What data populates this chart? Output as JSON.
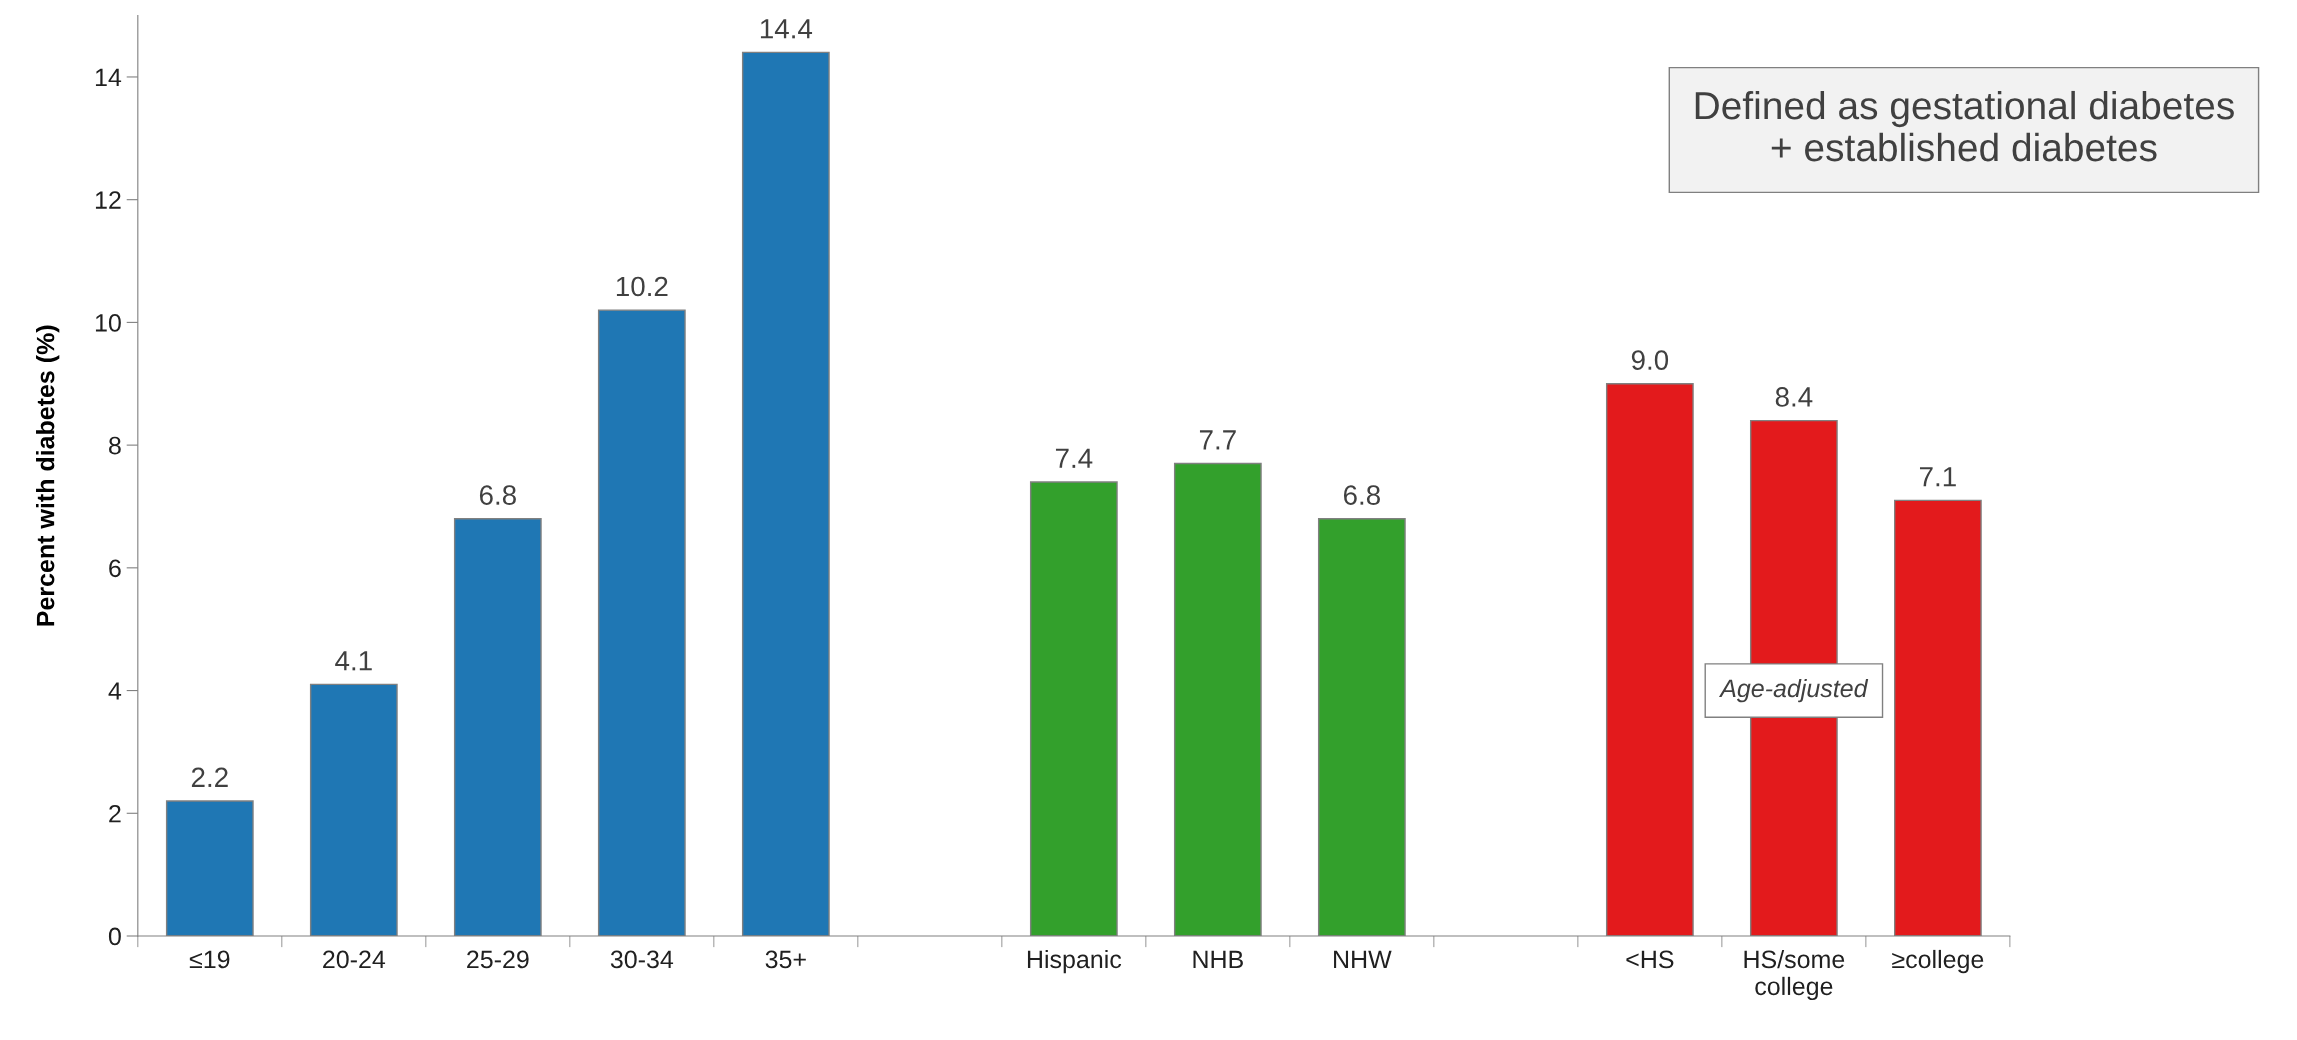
{
  "chart_data": {
    "type": "bar",
    "ylabel": "Percent with diabetes (%)",
    "categories": [
      "≤19",
      "20-24",
      "25-29",
      "30-34",
      "35+",
      null,
      "Hispanic",
      "NHB",
      "NHW",
      null,
      "<HS",
      "HS/some\ncollege",
      "≥college"
    ],
    "values": [
      2.2,
      4.1,
      6.8,
      10.2,
      14.4,
      null,
      7.4,
      7.7,
      6.8,
      null,
      9.0,
      8.4,
      7.1
    ],
    "value_labels": [
      "2.2",
      "4.1",
      "6.8",
      "10.2",
      "14.4",
      null,
      "7.4",
      "7.7",
      "6.8",
      null,
      "9.0",
      "8.4",
      "7.1"
    ],
    "colors": [
      "#1f77b4",
      "#1f77b4",
      "#1f77b4",
      "#1f77b4",
      "#1f77b4",
      null,
      "#33a02c",
      "#33a02c",
      "#33a02c",
      null,
      "#e31a1c",
      "#e31a1c",
      "#e31a1c"
    ],
    "ylim": [
      0,
      15
    ],
    "yticks": [
      0,
      2,
      4,
      6,
      8,
      10,
      12,
      14
    ],
    "grid": false,
    "annotations": [
      "Defined as gestational diabetes\n+ established diabetes",
      "Age-adjusted"
    ]
  }
}
